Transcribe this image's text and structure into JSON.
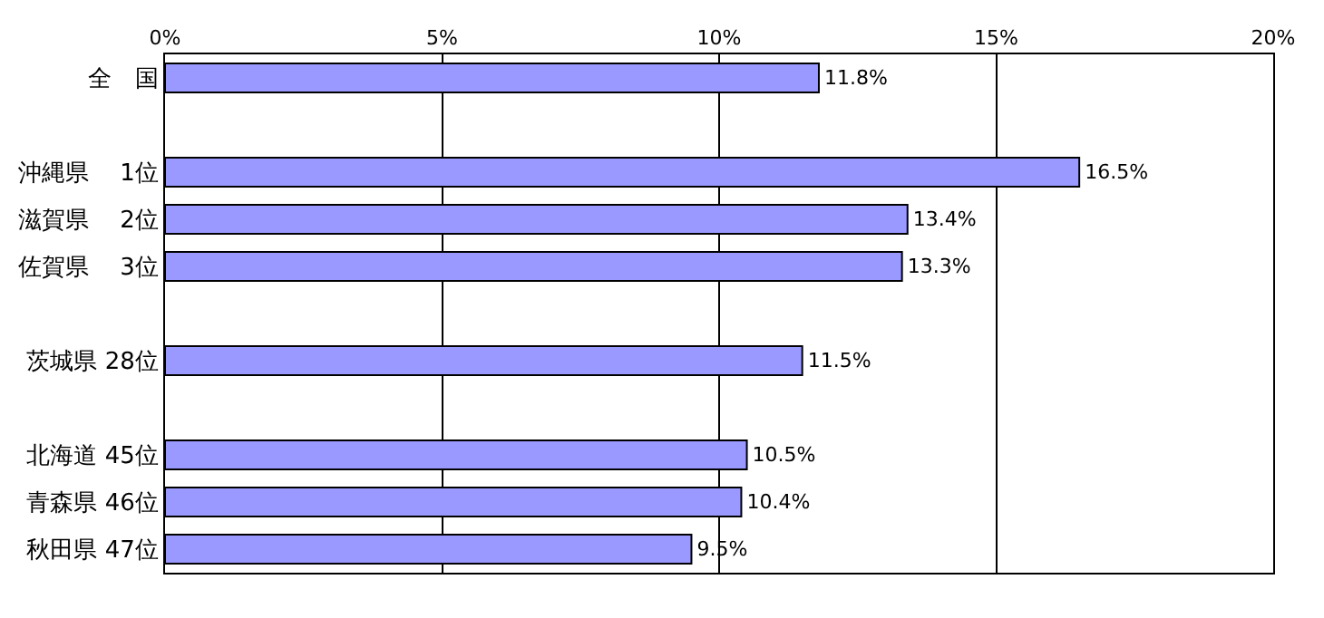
{
  "chart_data": {
    "type": "bar",
    "orientation": "horizontal",
    "categories": [
      "全　国",
      null,
      "沖縄県　 1位",
      "滋賀県　 2位",
      "佐賀県　 3位",
      null,
      "茨城県 28位",
      null,
      "北海道 45位",
      "青森県 46位",
      "秋田県 47位"
    ],
    "values": [
      11.8,
      null,
      16.5,
      13.4,
      13.3,
      null,
      11.5,
      null,
      10.5,
      10.4,
      9.5
    ],
    "value_labels": [
      "11.8%",
      null,
      "16.5%",
      "13.4%",
      "13.3%",
      null,
      "11.5%",
      null,
      "10.5%",
      "10.4%",
      "9.5%"
    ],
    "color": "#9999ff",
    "xlim": [
      0,
      20
    ],
    "xticks": [
      {
        "value": 0,
        "label": "0%"
      },
      {
        "value": 5,
        "label": "5%"
      },
      {
        "value": 10,
        "label": "10%"
      },
      {
        "value": 15,
        "label": "15%"
      },
      {
        "value": 20,
        "label": "20%"
      }
    ],
    "grid": "x"
  }
}
